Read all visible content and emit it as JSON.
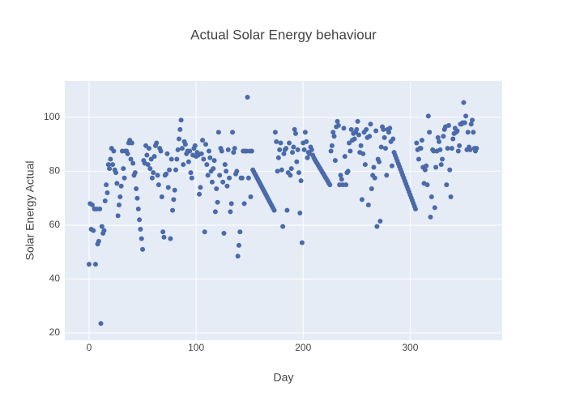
{
  "chart_data": {
    "type": "scatter",
    "title": "Actual Solar Energy behaviour",
    "x_label": "Day",
    "y_label": "Solar Energy Actual",
    "color": "#4a6aa9",
    "grid": true,
    "xlim": [
      -22.7,
      386
    ],
    "ylim": [
      17.3,
      113.5
    ],
    "xticks": [
      0,
      100,
      200,
      300
    ],
    "yticks": [
      20,
      40,
      60,
      80,
      100
    ],
    "x": [
      0,
      1,
      2,
      3,
      4,
      5,
      6,
      7,
      8,
      9,
      10,
      11,
      12,
      13,
      14,
      15,
      16,
      17,
      18,
      19,
      20,
      21,
      22,
      23,
      24,
      25,
      26,
      27,
      28,
      29,
      30,
      31,
      32,
      33,
      34,
      35,
      36,
      37,
      38,
      39,
      40,
      41,
      42,
      43,
      44,
      45,
      46,
      47,
      48,
      49,
      50,
      51,
      52,
      53,
      54,
      55,
      56,
      57,
      58,
      59,
      60,
      61,
      62,
      63,
      64,
      65,
      66,
      67,
      68,
      69,
      70,
      71,
      72,
      73,
      74,
      75,
      76,
      77,
      78,
      79,
      80,
      81,
      82,
      83,
      84,
      85,
      86,
      87,
      88,
      89,
      90,
      91,
      92,
      93,
      94,
      95,
      96,
      97,
      98,
      99,
      100,
      101,
      102,
      103,
      104,
      105,
      106,
      107,
      108,
      109,
      110,
      111,
      112,
      113,
      114,
      115,
      116,
      117,
      118,
      119,
      120,
      121,
      122,
      123,
      124,
      125,
      126,
      127,
      128,
      129,
      130,
      131,
      132,
      133,
      134,
      135,
      136,
      137,
      138,
      139,
      140,
      141,
      142,
      143,
      144,
      145,
      146,
      147,
      148,
      149,
      150,
      151,
      152,
      153,
      154,
      155,
      156,
      157,
      158,
      159,
      160,
      161,
      162,
      163,
      164,
      165,
      166,
      167,
      168,
      169,
      170,
      171,
      172,
      173,
      174,
      175,
      176,
      177,
      178,
      179,
      180,
      181,
      182,
      183,
      184,
      185,
      186,
      187,
      188,
      189,
      190,
      191,
      192,
      193,
      194,
      195,
      196,
      197,
      198,
      199,
      200,
      201,
      202,
      203,
      204,
      205,
      206,
      207,
      208,
      209,
      210,
      211,
      212,
      213,
      214,
      215,
      216,
      217,
      218,
      219,
      220,
      221,
      222,
      223,
      224,
      225,
      226,
      227,
      228,
      229,
      230,
      231,
      232,
      233,
      234,
      235,
      236,
      237,
      238,
      239,
      240,
      241,
      242,
      243,
      244,
      245,
      246,
      247,
      248,
      249,
      250,
      251,
      252,
      253,
      254,
      255,
      256,
      257,
      258,
      259,
      260,
      261,
      262,
      263,
      264,
      265,
      266,
      267,
      268,
      269,
      270,
      271,
      272,
      273,
      274,
      275,
      276,
      277,
      278,
      279,
      280,
      281,
      282,
      283,
      284,
      285,
      286,
      287,
      288,
      289,
      290,
      291,
      292,
      293,
      294,
      295,
      296,
      297,
      298,
      299,
      300,
      301,
      302,
      303,
      304,
      305,
      306,
      307,
      308,
      309,
      310,
      311,
      312,
      313,
      314,
      315,
      316,
      317,
      318,
      319,
      320,
      321,
      322,
      323,
      324,
      325,
      326,
      327,
      328,
      329,
      330,
      331,
      332,
      333,
      334,
      335,
      336,
      337,
      338,
      339,
      340,
      341,
      342,
      343,
      344,
      345,
      346,
      347,
      348,
      349,
      350,
      351,
      352,
      353,
      354,
      355,
      356,
      357,
      358,
      359,
      360,
      361,
      362
    ],
    "values": [
      45.5,
      68,
      58.5,
      67.5,
      58,
      66,
      45.5,
      66,
      53,
      54,
      66,
      23.5,
      59.5,
      57,
      58,
      69,
      75,
      72,
      82.5,
      81,
      84.5,
      88.5,
      82.5,
      87.5,
      80.5,
      79.5,
      75.5,
      63.5,
      67.5,
      70.5,
      74.5,
      87.5,
      81,
      77.5,
      87.5,
      87.5,
      86.5,
      90.5,
      91.5,
      84.5,
      90.5,
      83,
      78.5,
      79.5,
      73.5,
      70,
      66,
      62,
      58.5,
      55,
      51,
      84,
      83,
      89.5,
      86,
      82.5,
      88.5,
      81,
      84.5,
      77.5,
      79.5,
      85.5,
      89.5,
      90.5,
      78.5,
      75,
      88.5,
      87.5,
      70.5,
      57.5,
      55.5,
      78.5,
      79,
      86.5,
      74,
      80.5,
      55,
      84.5,
      65.5,
      69.5,
      73,
      80.5,
      84.5,
      88,
      92,
      95.5,
      99,
      88.5,
      82.5,
      91,
      90,
      86.5,
      87.5,
      83.5,
      87.5,
      79.5,
      77.5,
      86,
      88.5,
      89.5,
      85.5,
      87,
      86,
      71.5,
      74,
      86.5,
      91.5,
      84.5,
      57.5,
      90,
      82.5,
      78.5,
      87.5,
      85,
      80,
      76,
      81,
      84,
      65,
      73.5,
      68.5,
      94.5,
      78.5,
      88.5,
      87.5,
      76,
      57,
      82.5,
      80,
      74.5,
      88,
      77.5,
      65,
      68,
      94.5,
      87,
      88.5,
      79,
      80,
      48.5,
      52.5,
      57.5,
      77.5,
      77.5,
      87.5,
      68,
      87.5,
      87.5,
      107.5,
      77.5,
      87.5,
      70.5,
      87.5,
      80.5,
      79.75,
      79,
      78.25,
      77.5,
      76.75,
      76,
      75.25,
      74.5,
      73.75,
      73,
      72.25,
      71.5,
      70.75,
      70,
      69.25,
      68.5,
      67.75,
      67,
      66.25,
      65.5,
      94.5,
      91,
      80,
      85,
      88,
      90.5,
      80.5,
      59.5,
      86.5,
      88,
      88.5,
      65.5,
      79.5,
      90.5,
      78.5,
      81,
      87,
      89,
      95.5,
      94,
      83.5,
      88,
      79.5,
      64.5,
      76.5,
      53.5,
      90.5,
      88,
      94.5,
      91,
      85,
      87,
      86.5,
      89,
      88,
      86,
      85,
      84.3,
      83.6,
      83,
      82.3,
      81.6,
      81,
      80.3,
      79.6,
      79,
      78.3,
      77.6,
      77,
      76.3,
      75.6,
      75,
      87.5,
      89.5,
      94.5,
      93,
      84,
      96.5,
      98.5,
      97,
      75,
      78.5,
      77,
      75,
      96,
      85.5,
      75,
      79.5,
      80,
      90.5,
      87.5,
      95.5,
      91.5,
      94,
      92,
      94.5,
      95.5,
      98.5,
      93.5,
      87,
      89.5,
      69.5,
      86.5,
      94.5,
      82.5,
      95.5,
      92.5,
      67.5,
      93,
      97.5,
      73.5,
      78.5,
      81.5,
      77.5,
      95,
      59.5,
      84.5,
      83.5,
      61.5,
      89,
      96.5,
      95.5,
      92.5,
      88.5,
      78.5,
      95.5,
      94.5,
      96,
      91,
      82,
      92,
      87,
      85.95,
      84.9,
      83.85,
      82.8,
      81.75,
      80.7,
      79.65,
      78.6,
      77.55,
      76.5,
      75.45,
      74.4,
      73.35,
      72.3,
      71.25,
      70.2,
      69.15,
      68.1,
      67.05,
      66,
      90.5,
      88,
      84.5,
      88.5,
      88.5,
      91.5,
      81.5,
      75.5,
      80.5,
      82,
      75,
      100.5,
      94.5,
      63,
      70.5,
      88,
      87.5,
      66.5,
      81.5,
      87.5,
      92.5,
      91,
      88,
      82.5,
      84.5,
      93,
      95.5,
      96.5,
      75,
      88.5,
      97,
      80.5,
      70.5,
      88.5,
      92,
      94,
      96,
      94.5,
      95,
      87.5,
      89.5,
      97.5,
      97.5,
      98,
      105.5,
      98,
      100.5,
      88,
      94.5,
      89,
      88,
      97.5,
      99,
      94.5,
      88.5,
      87.5,
      88.5
    ]
  }
}
